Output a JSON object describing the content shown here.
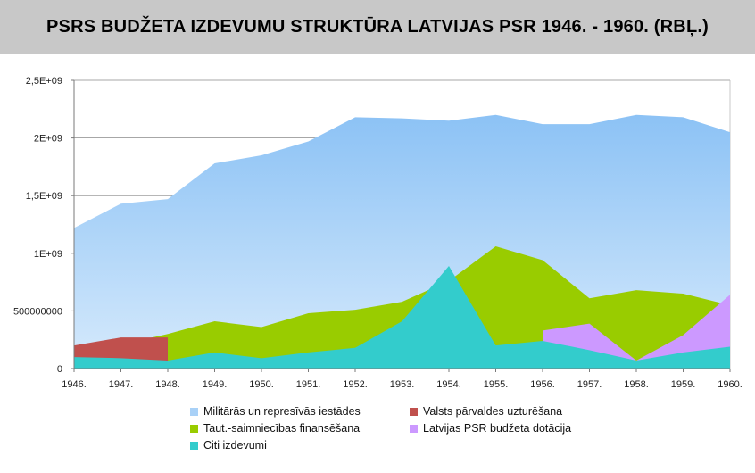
{
  "title": "PSRS BUDŽETA IZDEVUMU STRUKTŪRA LATVIJAS PSR 1946. - 1960. (RBĻ.)",
  "chart_data": {
    "type": "area",
    "title": "PSRS BUDŽETA IZDEVUMU STRUKTŪRA LATVIJAS PSR 1946. - 1960. (RBĻ.)",
    "categories": [
      "1946.",
      "1947.",
      "1948.",
      "1949.",
      "1950.",
      "1951.",
      "1952.",
      "1953.",
      "1954.",
      "1955.",
      "1956.",
      "1957.",
      "1958.",
      "1959.",
      "1960."
    ],
    "ylim": [
      0,
      2500000000
    ],
    "yticks": [
      0,
      500000000,
      1000000000,
      1500000000,
      2000000000,
      2500000000
    ],
    "ytick_labels": [
      "0",
      "500000000",
      "1E+09",
      "1,5E+09",
      "2E+09",
      "2,5E+09"
    ],
    "grid": true,
    "legend_position": "bottom",
    "series": [
      {
        "name": "Militārās un represīvās iestādes",
        "color": "#a9d1f7",
        "values": [
          1220000000,
          1430000000,
          1470000000,
          1780000000,
          1850000000,
          1970000000,
          2180000000,
          2170000000,
          2150000000,
          2200000000,
          2120000000,
          2120000000,
          2200000000,
          2180000000,
          2050000000
        ]
      },
      {
        "name": "Valsts pārvaldes uzturēšana",
        "color": "#c0504d",
        "values": [
          200000000,
          270000000,
          270000000,
          null,
          null,
          null,
          null,
          null,
          null,
          null,
          null,
          null,
          null,
          null,
          null
        ]
      },
      {
        "name": "Taut.-saimniecības finansēšana",
        "color": "#99cc00",
        "values": [
          145000000,
          210000000,
          300000000,
          410000000,
          360000000,
          480000000,
          510000000,
          580000000,
          760000000,
          1060000000,
          940000000,
          610000000,
          680000000,
          650000000,
          550000000
        ]
      },
      {
        "name": "Latvijas PSR budžeta dotācija",
        "color": "#cc99ff",
        "values": [
          null,
          null,
          null,
          null,
          null,
          null,
          null,
          null,
          null,
          null,
          330000000,
          390000000,
          70000000,
          290000000,
          640000000
        ]
      },
      {
        "name": "Citi izdevumi",
        "color": "#33cccc",
        "values": [
          100000000,
          90000000,
          70000000,
          140000000,
          90000000,
          140000000,
          180000000,
          410000000,
          890000000,
          200000000,
          240000000,
          160000000,
          70000000,
          140000000,
          190000000
        ]
      }
    ]
  },
  "legend": {
    "items": [
      {
        "label": "Militārās un represīvās iestādes",
        "color": "#a9d1f7"
      },
      {
        "label": "Valsts pārvaldes uzturēšana",
        "color": "#c0504d"
      },
      {
        "label": "Taut.-saimniecības finansēšana",
        "color": "#99cc00"
      },
      {
        "label": "Latvijas PSR budžeta dotācija",
        "color": "#cc99ff"
      },
      {
        "label": "Citi izdevumi",
        "color": "#33cccc"
      }
    ]
  }
}
